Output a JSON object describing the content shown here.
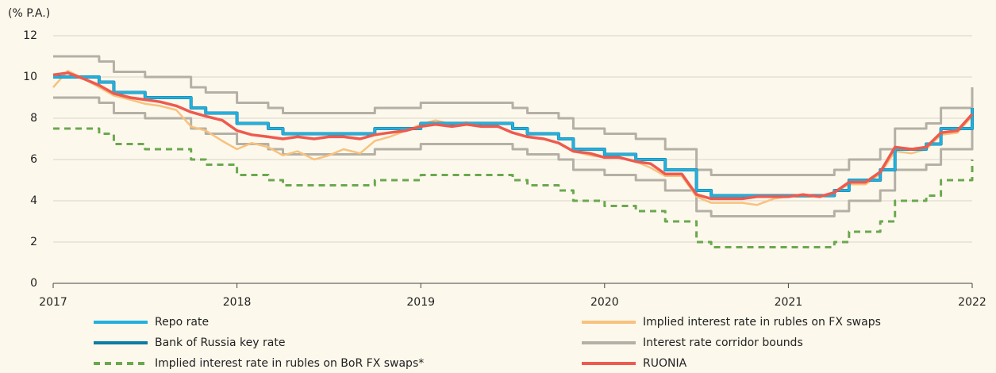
{
  "chart_data": {
    "type": "line",
    "y_axis_label": "(% P.A.)",
    "x": [
      2017,
      2017.08,
      2017.17,
      2017.25,
      2017.33,
      2017.42,
      2017.5,
      2017.58,
      2017.67,
      2017.75,
      2017.83,
      2017.92,
      2018,
      2018.08,
      2018.17,
      2018.25,
      2018.33,
      2018.42,
      2018.5,
      2018.58,
      2018.67,
      2018.75,
      2018.83,
      2018.92,
      2019,
      2019.08,
      2019.17,
      2019.25,
      2019.33,
      2019.42,
      2019.5,
      2019.58,
      2019.67,
      2019.75,
      2019.83,
      2019.92,
      2020,
      2020.08,
      2020.17,
      2020.25,
      2020.33,
      2020.42,
      2020.5,
      2020.58,
      2020.67,
      2020.75,
      2020.83,
      2020.92,
      2021,
      2021.08,
      2021.17,
      2021.25,
      2021.33,
      2021.42,
      2021.5,
      2021.58,
      2021.67,
      2021.75,
      2021.83,
      2021.92,
      2022
    ],
    "xlim": [
      2017,
      2022
    ],
    "xticks": [
      2017,
      2018,
      2019,
      2020,
      2021,
      2022
    ],
    "ylim": [
      0,
      12
    ],
    "yticks": [
      0,
      2,
      4,
      6,
      8,
      10,
      12
    ],
    "grid": true,
    "series": [
      {
        "name": "Interest rate corridor bounds",
        "color": "#b5b0a6",
        "step": true,
        "values": [
          11,
          11,
          11,
          10.75,
          10.25,
          10.25,
          10,
          10,
          10,
          9.5,
          9.25,
          9.25,
          8.75,
          8.75,
          8.5,
          8.25,
          8.25,
          8.25,
          8.25,
          8.25,
          8.25,
          8.5,
          8.5,
          8.5,
          8.75,
          8.75,
          8.75,
          8.75,
          8.75,
          8.75,
          8.5,
          8.25,
          8.25,
          8,
          7.5,
          7.5,
          7.25,
          7.25,
          7,
          7,
          6.5,
          6.5,
          5.5,
          5.25,
          5.25,
          5.25,
          5.25,
          5.25,
          5.25,
          5.25,
          5.25,
          5.5,
          6,
          6,
          6.5,
          7.5,
          7.5,
          7.75,
          8.5,
          8.5,
          9.5
        ],
        "lower": [
          9,
          9,
          9,
          8.75,
          8.25,
          8.25,
          8,
          8,
          8,
          7.5,
          7.25,
          7.25,
          6.75,
          6.75,
          6.5,
          6.25,
          6.25,
          6.25,
          6.25,
          6.25,
          6.25,
          6.5,
          6.5,
          6.5,
          6.75,
          6.75,
          6.75,
          6.75,
          6.75,
          6.75,
          6.5,
          6.25,
          6.25,
          6,
          5.5,
          5.5,
          5.25,
          5.25,
          5,
          5,
          4.5,
          4.5,
          3.5,
          3.25,
          3.25,
          3.25,
          3.25,
          3.25,
          3.25,
          3.25,
          3.25,
          3.5,
          4,
          4,
          4.5,
          5.5,
          5.5,
          5.75,
          6.5,
          6.5,
          7.5
        ]
      },
      {
        "name": "Implied interest rate in rubles on BoR FX swaps*",
        "color": "#6aa84f",
        "step": true,
        "dashed": true,
        "values": [
          7.5,
          7.5,
          7.5,
          7.25,
          6.75,
          6.75,
          6.5,
          6.5,
          6.5,
          6,
          5.75,
          5.75,
          5.25,
          5.25,
          5,
          4.75,
          4.75,
          4.75,
          4.75,
          4.75,
          4.75,
          5,
          5,
          5,
          5.25,
          5.25,
          5.25,
          5.25,
          5.25,
          5.25,
          5,
          4.75,
          4.75,
          4.5,
          4,
          4,
          3.75,
          3.75,
          3.5,
          3.5,
          3,
          3,
          2,
          1.75,
          1.75,
          1.75,
          1.75,
          1.75,
          1.75,
          1.75,
          1.75,
          2,
          2.5,
          2.5,
          3,
          4,
          4,
          4.25,
          5,
          5,
          6
        ]
      },
      {
        "name": "Implied interest rate in rubles on FX swaps",
        "color": "#f7c27e",
        "step": false,
        "values": [
          9.5,
          10.3,
          9.9,
          9.5,
          9.1,
          8.9,
          8.7,
          8.6,
          8.4,
          7.6,
          7.4,
          6.9,
          6.5,
          6.8,
          6.6,
          6.2,
          6.4,
          6.0,
          6.2,
          6.5,
          6.3,
          6.9,
          7.1,
          7.4,
          7.7,
          7.9,
          7.7,
          7.8,
          7.6,
          7.6,
          7.3,
          7.1,
          7.0,
          6.8,
          6.4,
          6.2,
          6.1,
          6.1,
          5.9,
          5.6,
          5.2,
          5.2,
          4.2,
          3.9,
          3.9,
          3.9,
          3.8,
          4.1,
          4.2,
          4.2,
          4.2,
          4.4,
          4.8,
          4.8,
          5.3,
          6.4,
          6.3,
          6.5,
          7.2,
          7.3,
          8.1
        ]
      },
      {
        "name": "Bank of Russia key rate",
        "color": "#0f7aa3",
        "step": true,
        "values": [
          10,
          10,
          10,
          9.75,
          9.25,
          9.25,
          9,
          9,
          9,
          8.5,
          8.25,
          8.25,
          7.75,
          7.75,
          7.5,
          7.25,
          7.25,
          7.25,
          7.25,
          7.25,
          7.25,
          7.5,
          7.5,
          7.5,
          7.75,
          7.75,
          7.75,
          7.75,
          7.75,
          7.75,
          7.5,
          7.25,
          7.25,
          7,
          6.5,
          6.5,
          6.25,
          6.25,
          6,
          6,
          5.5,
          5.5,
          4.5,
          4.25,
          4.25,
          4.25,
          4.25,
          4.25,
          4.25,
          4.25,
          4.25,
          4.5,
          5,
          5,
          5.5,
          6.5,
          6.5,
          6.75,
          7.5,
          7.5,
          8.5
        ]
      },
      {
        "name": "Repo rate",
        "color": "#23b0dc",
        "step": true,
        "values": [
          10,
          10,
          10,
          9.75,
          9.25,
          9.25,
          9,
          9,
          9,
          8.5,
          8.25,
          8.25,
          7.75,
          7.75,
          7.5,
          7.25,
          7.25,
          7.25,
          7.25,
          7.25,
          7.25,
          7.5,
          7.5,
          7.5,
          7.75,
          7.75,
          7.75,
          7.75,
          7.75,
          7.75,
          7.5,
          7.25,
          7.25,
          7,
          6.5,
          6.5,
          6.25,
          6.25,
          6,
          6,
          5.5,
          5.5,
          4.5,
          4.25,
          4.25,
          4.25,
          4.25,
          4.25,
          4.25,
          4.25,
          4.25,
          4.5,
          5,
          5,
          5.5,
          6.5,
          6.5,
          6.75,
          7.5,
          7.5,
          8.5
        ]
      },
      {
        "name": "RUONIA",
        "color": "#ee5a4f",
        "step": false,
        "values": [
          10.1,
          10.2,
          9.9,
          9.6,
          9.2,
          9.0,
          8.9,
          8.8,
          8.6,
          8.3,
          8.1,
          7.9,
          7.4,
          7.2,
          7.1,
          7.0,
          7.1,
          7.0,
          7.1,
          7.1,
          7.0,
          7.2,
          7.3,
          7.4,
          7.6,
          7.7,
          7.6,
          7.7,
          7.6,
          7.6,
          7.3,
          7.1,
          7.0,
          6.8,
          6.4,
          6.3,
          6.1,
          6.1,
          5.9,
          5.8,
          5.3,
          5.3,
          4.3,
          4.1,
          4.1,
          4.1,
          4.2,
          4.2,
          4.2,
          4.3,
          4.2,
          4.4,
          4.9,
          4.9,
          5.4,
          6.6,
          6.5,
          6.6,
          7.3,
          7.4,
          8.2
        ]
      }
    ]
  }
}
